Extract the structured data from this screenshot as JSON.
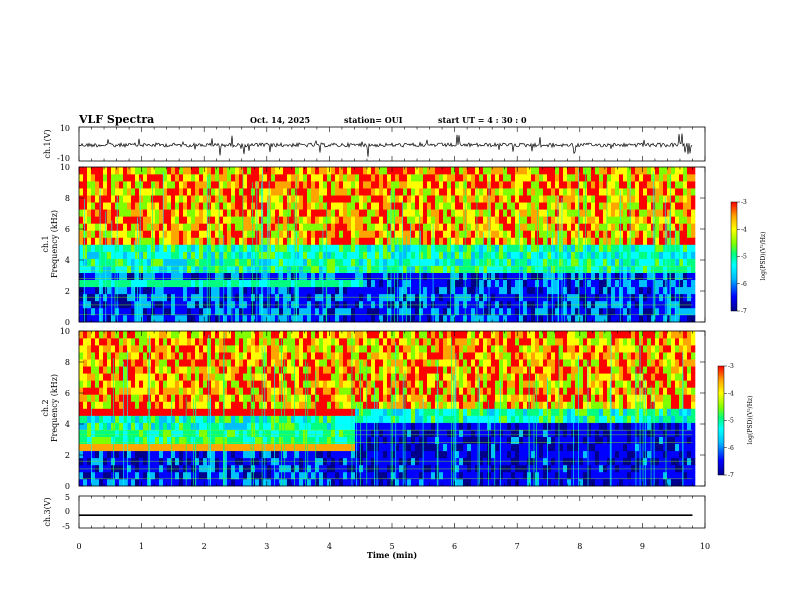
{
  "header": {
    "title": "VLF Spectra",
    "date": "Oct. 14, 2025",
    "station": "station= OUI",
    "start": "start  UT  =   4  : 30 : 0"
  },
  "colors": {
    "spectrum": [
      "#00008b",
      "#0000ff",
      "#00bfff",
      "#00ffff",
      "#00ff80",
      "#7fff00",
      "#ffff00",
      "#ffa500",
      "#ff0000"
    ]
  },
  "chart_data": [
    {
      "type": "line",
      "name": "ch1-waveform",
      "ylabel": "ch.1(V)",
      "ylim": [
        -10,
        10
      ],
      "ytick_labels": [
        "10",
        "-10"
      ]
    },
    {
      "type": "heatmap",
      "name": "ch1-spectrogram",
      "ylabel": "ch.1\nFrequency (kHz)",
      "ylim": [
        0,
        10
      ],
      "ytick_labels": [
        "0",
        "2",
        "4",
        "6",
        "8",
        "10"
      ],
      "colorbar": {
        "label": "log(PSD)(V²/Hz)",
        "range": [
          -7,
          -3
        ],
        "tick_labels": [
          "-3",
          "-4",
          "-5",
          "-6",
          "-7"
        ]
      }
    },
    {
      "type": "heatmap",
      "name": "ch2-spectrogram",
      "ylabel": "ch.2\nFrequency (kHz)",
      "ylim": [
        0,
        10
      ],
      "ytick_labels": [
        "0",
        "2",
        "4",
        "6",
        "8",
        "10"
      ],
      "colorbar": {
        "label": "log(PSD)(V²/Hz)",
        "range": [
          -7,
          -3
        ],
        "tick_labels": [
          "-3",
          "-4",
          "-5",
          "-6",
          "-7"
        ]
      }
    },
    {
      "type": "line",
      "name": "ch3-trace",
      "ylabel": "ch.3(V)",
      "ylim": [
        -5,
        5
      ],
      "ytick_labels": [
        "5",
        "0",
        "-5"
      ],
      "values": [
        -1,
        -1
      ]
    }
  ],
  "xaxis": {
    "label": "Time  (min)",
    "range": [
      0,
      10
    ],
    "tick_labels": [
      "0",
      "1",
      "2",
      "3",
      "4",
      "5",
      "6",
      "7",
      "8",
      "9",
      "10"
    ],
    "data_end": 9.8
  }
}
